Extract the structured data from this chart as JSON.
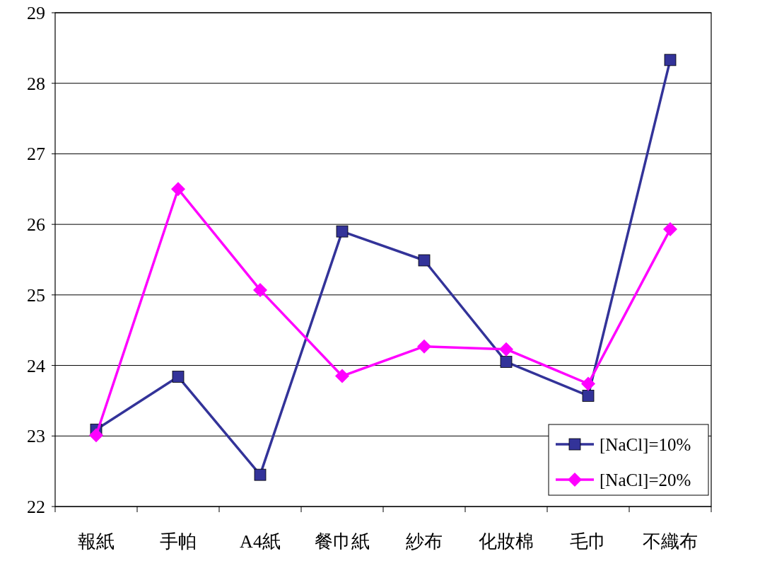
{
  "chart_data": {
    "type": "line",
    "categories": [
      "報紙",
      "手帕",
      "A4紙",
      "餐巾紙",
      "紗布",
      "化妝棉",
      "毛巾",
      "不織布"
    ],
    "series": [
      {
        "name": "[NaCl]=10%",
        "color": "#333399",
        "marker": "square",
        "values": [
          23.09,
          23.84,
          22.45,
          25.9,
          25.49,
          24.05,
          23.57,
          28.33
        ]
      },
      {
        "name": "[NaCl]=20%",
        "color": "#ff00ff",
        "marker": "diamond",
        "values": [
          23.01,
          26.5,
          25.07,
          23.85,
          24.27,
          24.23,
          23.74,
          25.93
        ]
      }
    ],
    "ylim": [
      22,
      29
    ],
    "yticks": [
      22,
      23,
      24,
      25,
      26,
      27,
      28,
      29
    ],
    "grid": "y",
    "legend": "bottom right"
  }
}
